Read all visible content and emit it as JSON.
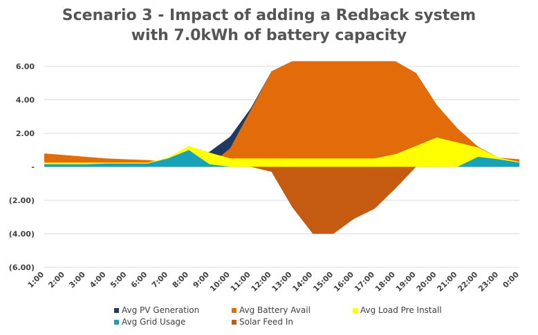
{
  "chart_data": {
    "type": "area",
    "title_lines": [
      "Scenario 3 - Impact of adding a Redback system",
      "with 7.0kWh of battery capacity"
    ],
    "xlabel": "",
    "ylabel": "",
    "ylim": [
      -6,
      6
    ],
    "yticks": [
      6,
      4,
      2,
      0,
      -2,
      -4,
      -6
    ],
    "ytick_labels": [
      "6.00",
      "4.00",
      "2.00",
      "-",
      "(2.00)",
      "(4.00)",
      "(6.00)"
    ],
    "grid": true,
    "legend_position": "bottom",
    "categories": [
      "1:00",
      "2:00",
      "3:00",
      "4:00",
      "5:00",
      "6:00",
      "7:00",
      "8:00",
      "9:00",
      "10:00",
      "11:00",
      "12:00",
      "13:00",
      "14:00",
      "15:00",
      "16:00",
      "17:00",
      "18:00",
      "19:00",
      "20:00",
      "21:00",
      "22:00",
      "23:00",
      "0:00"
    ],
    "series": [
      {
        "name": "Avg PV Generation",
        "color": "#1f3864",
        "values": [
          0,
          0,
          0,
          0,
          0,
          0,
          0,
          0.5,
          0.9,
          1.8,
          3.5,
          5.7,
          6.3,
          6.3,
          6.3,
          6.3,
          6.3,
          6.3,
          5.6,
          3.7,
          2.2,
          1.0,
          0.2,
          0
        ]
      },
      {
        "name": "Avg Battery Avail",
        "color": "#e36c0a",
        "values": [
          0.8,
          0.7,
          0.6,
          0.5,
          0.45,
          0.4,
          0.3,
          0.2,
          0.1,
          1.1,
          3.4,
          5.7,
          6.3,
          6.3,
          6.3,
          6.3,
          6.3,
          6.3,
          5.6,
          3.7,
          2.3,
          1.2,
          0.55,
          0.45
        ]
      },
      {
        "name": "Avg Load Pre Install",
        "color": "#ffff00",
        "values": [
          0.25,
          0.25,
          0.25,
          0.25,
          0.25,
          0.25,
          0.55,
          1.25,
          0.85,
          0.5,
          0.5,
          0.5,
          0.5,
          0.5,
          0.5,
          0.5,
          0.5,
          0.75,
          1.25,
          1.75,
          1.45,
          1.15,
          0.55,
          0.3
        ]
      },
      {
        "name": "Avg Grid Usage",
        "color": "#17a2b8",
        "values": [
          0.15,
          0.15,
          0.15,
          0.2,
          0.2,
          0.2,
          0.5,
          1.0,
          0.15,
          0,
          0,
          0,
          0,
          0,
          0,
          0,
          0,
          0,
          0,
          0,
          0,
          0.6,
          0.45,
          0.25
        ]
      },
      {
        "name": "Solar Feed In",
        "color": "#c55a11",
        "values": [
          0,
          0,
          0,
          0,
          0,
          0,
          0,
          0,
          0,
          0,
          0,
          -0.3,
          -2.4,
          -4.0,
          -4.0,
          -3.1,
          -2.5,
          -1.3,
          0,
          0,
          0,
          0,
          0,
          0
        ]
      }
    ]
  }
}
